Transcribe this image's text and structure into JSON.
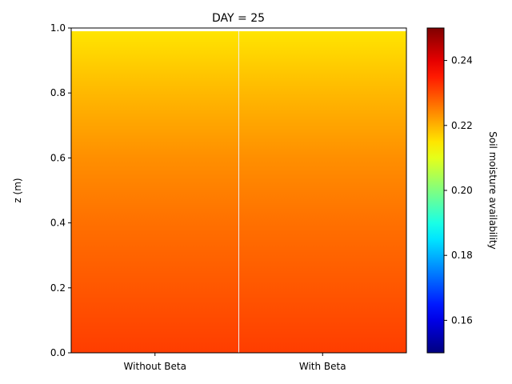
{
  "chart_data": {
    "type": "heatmap",
    "title": "DAY = 25",
    "xlabel": "",
    "ylabel": "z (m)",
    "categories": [
      "Without Beta",
      "With Beta"
    ],
    "ylim": [
      0,
      1.0
    ],
    "yticks": [
      "0.0",
      "0.2",
      "0.4",
      "0.6",
      "0.8",
      "1.0"
    ],
    "colormap": "jet",
    "colorbar": {
      "label": "Soil moisture availability",
      "range": [
        0.15,
        0.25
      ],
      "ticks": [
        "0.16",
        "0.18",
        "0.20",
        "0.22",
        "0.24"
      ]
    },
    "profile": [
      {
        "z": 0.0,
        "value": 0.2315
      },
      {
        "z": 0.2,
        "value": 0.229
      },
      {
        "z": 0.4,
        "value": 0.2265
      },
      {
        "z": 0.6,
        "value": 0.2235
      },
      {
        "z": 0.8,
        "value": 0.2195
      },
      {
        "z": 0.99,
        "value": 0.215
      }
    ],
    "grid": false
  },
  "colors": {
    "divider": "#f0f0f0",
    "axis": "#000000",
    "background": "#ffffff"
  }
}
